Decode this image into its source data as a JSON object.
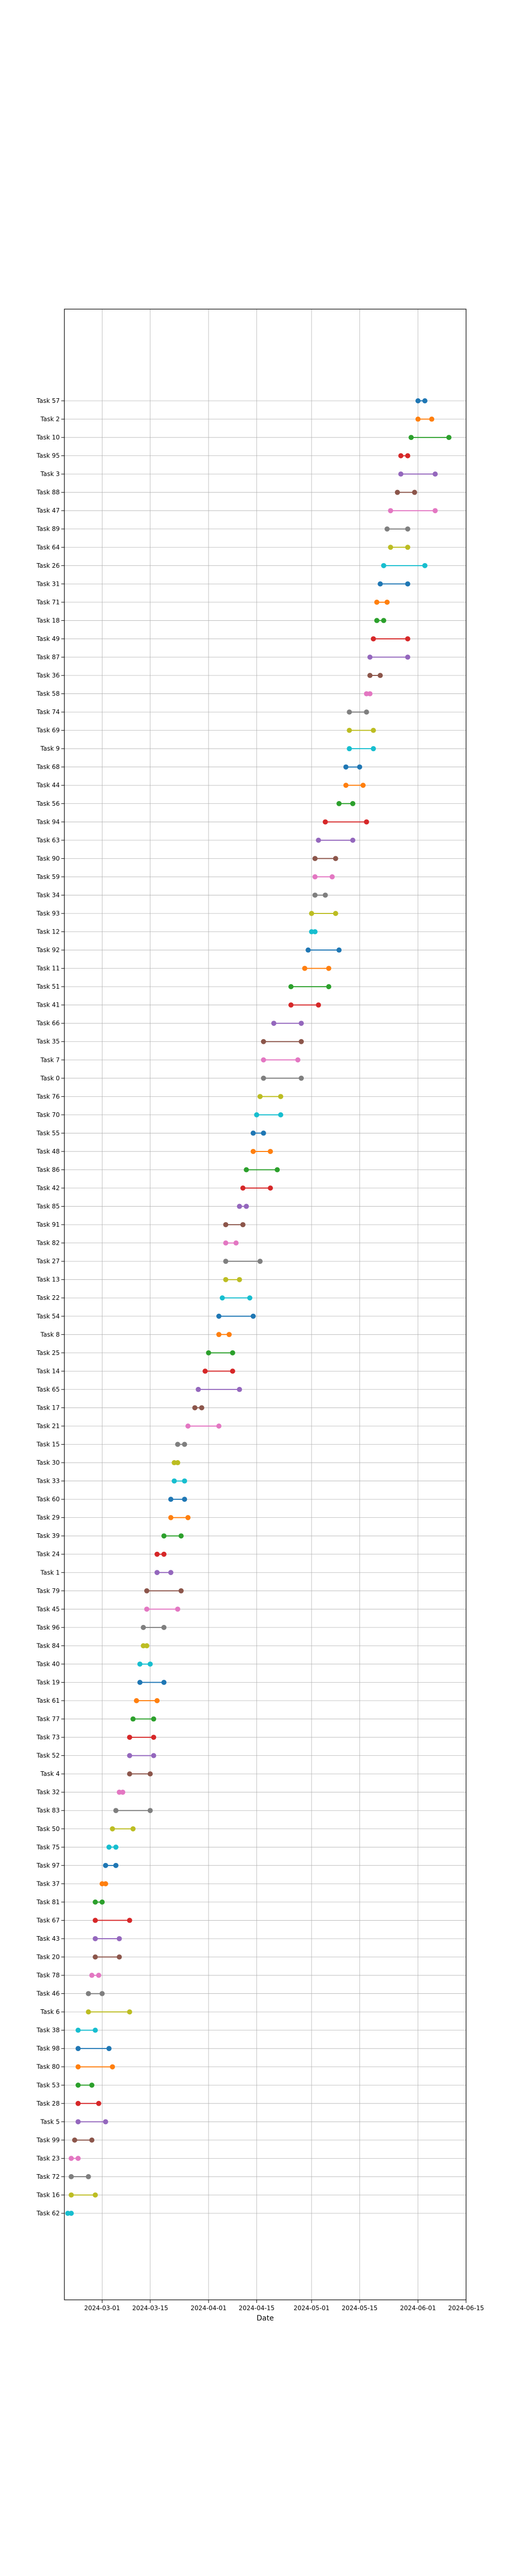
{
  "chart_data": {
    "type": "dumbbell",
    "title": "",
    "xlabel": "Date",
    "ylabel": "",
    "xlim": [
      "2024-02-19",
      "2024-06-15"
    ],
    "x_ticks": [
      "2024-03-01",
      "2024-03-15",
      "2024-04-01",
      "2024-04-15",
      "2024-05-01",
      "2024-05-15",
      "2024-06-01",
      "2024-06-15"
    ],
    "grid": true,
    "legend": "none",
    "colors": [
      "#1f77b4",
      "#ff7f0e",
      "#2ca02c",
      "#d62728",
      "#9467bd",
      "#8c564b",
      "#e377c2",
      "#7f7f7f",
      "#bcbd22",
      "#17becf"
    ],
    "tasks": [
      {
        "name": "Task 57",
        "start": "2024-06-01",
        "end": "2024-06-03"
      },
      {
        "name": "Task 2",
        "start": "2024-06-01",
        "end": "2024-06-05"
      },
      {
        "name": "Task 10",
        "start": "2024-05-30",
        "end": "2024-06-10"
      },
      {
        "name": "Task 95",
        "start": "2024-05-27",
        "end": "2024-05-29"
      },
      {
        "name": "Task 3",
        "start": "2024-05-27",
        "end": "2024-06-06"
      },
      {
        "name": "Task 88",
        "start": "2024-05-26",
        "end": "2024-05-31"
      },
      {
        "name": "Task 47",
        "start": "2024-05-24",
        "end": "2024-06-06"
      },
      {
        "name": "Task 89",
        "start": "2024-05-23",
        "end": "2024-05-29"
      },
      {
        "name": "Task 64",
        "start": "2024-05-24",
        "end": "2024-05-29"
      },
      {
        "name": "Task 26",
        "start": "2024-05-22",
        "end": "2024-06-03"
      },
      {
        "name": "Task 31",
        "start": "2024-05-21",
        "end": "2024-05-29"
      },
      {
        "name": "Task 71",
        "start": "2024-05-20",
        "end": "2024-05-23"
      },
      {
        "name": "Task 18",
        "start": "2024-05-20",
        "end": "2024-05-22"
      },
      {
        "name": "Task 49",
        "start": "2024-05-19",
        "end": "2024-05-29"
      },
      {
        "name": "Task 87",
        "start": "2024-05-18",
        "end": "2024-05-29"
      },
      {
        "name": "Task 36",
        "start": "2024-05-18",
        "end": "2024-05-21"
      },
      {
        "name": "Task 58",
        "start": "2024-05-17",
        "end": "2024-05-18"
      },
      {
        "name": "Task 74",
        "start": "2024-05-12",
        "end": "2024-05-17"
      },
      {
        "name": "Task 69",
        "start": "2024-05-12",
        "end": "2024-05-19"
      },
      {
        "name": "Task 9",
        "start": "2024-05-12",
        "end": "2024-05-19"
      },
      {
        "name": "Task 68",
        "start": "2024-05-11",
        "end": "2024-05-15"
      },
      {
        "name": "Task 44",
        "start": "2024-05-11",
        "end": "2024-05-16"
      },
      {
        "name": "Task 56",
        "start": "2024-05-09",
        "end": "2024-05-13"
      },
      {
        "name": "Task 94",
        "start": "2024-05-05",
        "end": "2024-05-17"
      },
      {
        "name": "Task 63",
        "start": "2024-05-03",
        "end": "2024-05-13"
      },
      {
        "name": "Task 90",
        "start": "2024-05-02",
        "end": "2024-05-08"
      },
      {
        "name": "Task 59",
        "start": "2024-05-02",
        "end": "2024-05-07"
      },
      {
        "name": "Task 34",
        "start": "2024-05-02",
        "end": "2024-05-05"
      },
      {
        "name": "Task 93",
        "start": "2024-05-01",
        "end": "2024-05-08"
      },
      {
        "name": "Task 12",
        "start": "2024-05-01",
        "end": "2024-05-02"
      },
      {
        "name": "Task 92",
        "start": "2024-04-30",
        "end": "2024-05-09"
      },
      {
        "name": "Task 11",
        "start": "2024-04-29",
        "end": "2024-05-06"
      },
      {
        "name": "Task 51",
        "start": "2024-04-25",
        "end": "2024-05-06"
      },
      {
        "name": "Task 41",
        "start": "2024-04-25",
        "end": "2024-05-03"
      },
      {
        "name": "Task 66",
        "start": "2024-04-20",
        "end": "2024-04-28"
      },
      {
        "name": "Task 35",
        "start": "2024-04-17",
        "end": "2024-04-28"
      },
      {
        "name": "Task 7",
        "start": "2024-04-17",
        "end": "2024-04-27"
      },
      {
        "name": "Task 0",
        "start": "2024-04-17",
        "end": "2024-04-28"
      },
      {
        "name": "Task 76",
        "start": "2024-04-16",
        "end": "2024-04-22"
      },
      {
        "name": "Task 70",
        "start": "2024-04-15",
        "end": "2024-04-22"
      },
      {
        "name": "Task 55",
        "start": "2024-04-14",
        "end": "2024-04-17"
      },
      {
        "name": "Task 48",
        "start": "2024-04-14",
        "end": "2024-04-19"
      },
      {
        "name": "Task 86",
        "start": "2024-04-12",
        "end": "2024-04-21"
      },
      {
        "name": "Task 42",
        "start": "2024-04-11",
        "end": "2024-04-19"
      },
      {
        "name": "Task 85",
        "start": "2024-04-10",
        "end": "2024-04-12"
      },
      {
        "name": "Task 91",
        "start": "2024-04-06",
        "end": "2024-04-11"
      },
      {
        "name": "Task 82",
        "start": "2024-04-06",
        "end": "2024-04-09"
      },
      {
        "name": "Task 27",
        "start": "2024-04-06",
        "end": "2024-04-16"
      },
      {
        "name": "Task 13",
        "start": "2024-04-06",
        "end": "2024-04-10"
      },
      {
        "name": "Task 22",
        "start": "2024-04-05",
        "end": "2024-04-13"
      },
      {
        "name": "Task 54",
        "start": "2024-04-04",
        "end": "2024-04-14"
      },
      {
        "name": "Task 8",
        "start": "2024-04-04",
        "end": "2024-04-07"
      },
      {
        "name": "Task 25",
        "start": "2024-04-01",
        "end": "2024-04-08"
      },
      {
        "name": "Task 14",
        "start": "2024-03-31",
        "end": "2024-04-08"
      },
      {
        "name": "Task 65",
        "start": "2024-03-29",
        "end": "2024-04-10"
      },
      {
        "name": "Task 17",
        "start": "2024-03-28",
        "end": "2024-03-30"
      },
      {
        "name": "Task 21",
        "start": "2024-03-26",
        "end": "2024-04-04"
      },
      {
        "name": "Task 15",
        "start": "2024-03-23",
        "end": "2024-03-25"
      },
      {
        "name": "Task 30",
        "start": "2024-03-22",
        "end": "2024-03-23"
      },
      {
        "name": "Task 33",
        "start": "2024-03-22",
        "end": "2024-03-25"
      },
      {
        "name": "Task 60",
        "start": "2024-03-21",
        "end": "2024-03-25"
      },
      {
        "name": "Task 29",
        "start": "2024-03-21",
        "end": "2024-03-26"
      },
      {
        "name": "Task 39",
        "start": "2024-03-19",
        "end": "2024-03-24"
      },
      {
        "name": "Task 24",
        "start": "2024-03-17",
        "end": "2024-03-19"
      },
      {
        "name": "Task 1",
        "start": "2024-03-17",
        "end": "2024-03-21"
      },
      {
        "name": "Task 79",
        "start": "2024-03-14",
        "end": "2024-03-24"
      },
      {
        "name": "Task 45",
        "start": "2024-03-14",
        "end": "2024-03-23"
      },
      {
        "name": "Task 96",
        "start": "2024-03-13",
        "end": "2024-03-19"
      },
      {
        "name": "Task 84",
        "start": "2024-03-13",
        "end": "2024-03-14"
      },
      {
        "name": "Task 40",
        "start": "2024-03-12",
        "end": "2024-03-15"
      },
      {
        "name": "Task 19",
        "start": "2024-03-12",
        "end": "2024-03-19"
      },
      {
        "name": "Task 61",
        "start": "2024-03-11",
        "end": "2024-03-17"
      },
      {
        "name": "Task 77",
        "start": "2024-03-10",
        "end": "2024-03-16"
      },
      {
        "name": "Task 73",
        "start": "2024-03-09",
        "end": "2024-03-16"
      },
      {
        "name": "Task 52",
        "start": "2024-03-09",
        "end": "2024-03-16"
      },
      {
        "name": "Task 4",
        "start": "2024-03-09",
        "end": "2024-03-15"
      },
      {
        "name": "Task 32",
        "start": "2024-03-06",
        "end": "2024-03-07"
      },
      {
        "name": "Task 83",
        "start": "2024-03-05",
        "end": "2024-03-15"
      },
      {
        "name": "Task 50",
        "start": "2024-03-04",
        "end": "2024-03-10"
      },
      {
        "name": "Task 75",
        "start": "2024-03-03",
        "end": "2024-03-05"
      },
      {
        "name": "Task 97",
        "start": "2024-03-02",
        "end": "2024-03-05"
      },
      {
        "name": "Task 37",
        "start": "2024-03-01",
        "end": "2024-03-02"
      },
      {
        "name": "Task 81",
        "start": "2024-02-28",
        "end": "2024-03-01"
      },
      {
        "name": "Task 67",
        "start": "2024-02-28",
        "end": "2024-03-09"
      },
      {
        "name": "Task 43",
        "start": "2024-02-28",
        "end": "2024-03-06"
      },
      {
        "name": "Task 20",
        "start": "2024-02-28",
        "end": "2024-03-06"
      },
      {
        "name": "Task 78",
        "start": "2024-02-27",
        "end": "2024-02-29"
      },
      {
        "name": "Task 46",
        "start": "2024-02-26",
        "end": "2024-03-01"
      },
      {
        "name": "Task 6",
        "start": "2024-02-26",
        "end": "2024-03-09"
      },
      {
        "name": "Task 38",
        "start": "2024-02-23",
        "end": "2024-02-28"
      },
      {
        "name": "Task 98",
        "start": "2024-02-23",
        "end": "2024-03-03"
      },
      {
        "name": "Task 80",
        "start": "2024-02-23",
        "end": "2024-03-04"
      },
      {
        "name": "Task 53",
        "start": "2024-02-23",
        "end": "2024-02-27"
      },
      {
        "name": "Task 28",
        "start": "2024-02-23",
        "end": "2024-02-29"
      },
      {
        "name": "Task 5",
        "start": "2024-02-23",
        "end": "2024-03-02"
      },
      {
        "name": "Task 99",
        "start": "2024-02-22",
        "end": "2024-02-27"
      },
      {
        "name": "Task 23",
        "start": "2024-02-21",
        "end": "2024-02-23"
      },
      {
        "name": "Task 72",
        "start": "2024-02-21",
        "end": "2024-02-26"
      },
      {
        "name": "Task 16",
        "start": "2024-02-21",
        "end": "2024-02-28"
      },
      {
        "name": "Task 62",
        "start": "2024-02-20",
        "end": "2024-02-21"
      }
    ]
  }
}
